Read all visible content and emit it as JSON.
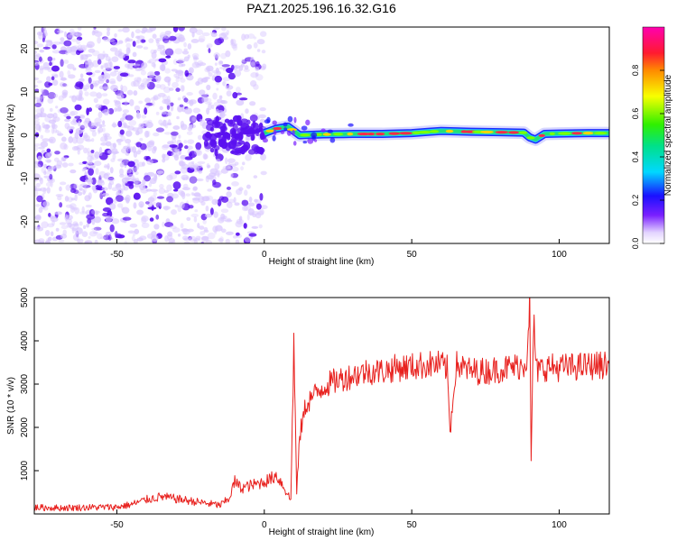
{
  "figure": {
    "title": "PAZ1.2025.196.16.32.G16"
  },
  "colors": {
    "snr_line": "#e8211e",
    "speckle_light": "#d8c6ff",
    "speckle_dark": "#5a10f0",
    "ridge_outer": "#1f2bff",
    "ridge_mid": "#22e07a",
    "ridge_core": "#ff2a4a"
  },
  "colorbar": {
    "label": "Normalized spectral amplitude",
    "ticks": [
      "0.0",
      "0.2",
      "0.4",
      "0.6",
      "0.8"
    ],
    "tick_values": [
      0.0,
      0.2,
      0.4,
      0.6,
      0.8
    ],
    "range": [
      0,
      1
    ],
    "colormap": "rainbow (white-violet → blue → cyan → green → yellow → red → magenta)"
  },
  "chart_data": [
    {
      "type": "heatmap",
      "xlabel": "Height of straight line (km)",
      "ylabel": "Frequency (Hz)",
      "xlim": [
        -78,
        117
      ],
      "ylim": [
        -25,
        25
      ],
      "x_ticks": [
        -50,
        0,
        50,
        100
      ],
      "x_tick_labels": [
        "-50",
        "0",
        "50",
        "100"
      ],
      "y_ticks": [
        -20,
        -10,
        0,
        10,
        20
      ],
      "y_tick_labels": [
        "-20",
        "-10",
        "0",
        "10",
        "20"
      ],
      "grid": false,
      "noise_region_x": [
        -78,
        0
      ],
      "signal_ridge": {
        "x": [
          0,
          4,
          8,
          12,
          20,
          30,
          40,
          50,
          56,
          60,
          70,
          80,
          88,
          90,
          92,
          95,
          100,
          110,
          117
        ],
        "frequency": [
          0.5,
          1.5,
          2,
          0,
          0.2,
          0.3,
          0.3,
          0.5,
          0.8,
          1.0,
          0.8,
          0.7,
          0.6,
          -0.5,
          -1.0,
          0.3,
          0.4,
          0.5,
          0.5
        ],
        "peak_amplitude": 0.9
      }
    },
    {
      "type": "line",
      "xlabel": "Height of straight line (km)",
      "ylabel": "SNR (10 * v/v)",
      "xlim": [
        -78,
        117
      ],
      "ylim": [
        0,
        5000
      ],
      "x_ticks": [
        -50,
        0,
        50,
        100
      ],
      "x_tick_labels": [
        "-50",
        "0",
        "50",
        "100"
      ],
      "y_ticks": [
        1000,
        2000,
        3000,
        4000,
        5000
      ],
      "y_tick_labels": [
        "1000",
        "2000",
        "3000",
        "4000",
        "5000"
      ],
      "grid": false,
      "series": [
        {
          "x": [
            -78,
            -70,
            -60,
            -50,
            -45,
            -40,
            -35,
            -30,
            -25,
            -20,
            -15,
            -12,
            -10,
            -8,
            -5,
            -2,
            0,
            2,
            4,
            6,
            8,
            9,
            10,
            11,
            12,
            14,
            16,
            18,
            20,
            25,
            30,
            35,
            40,
            45,
            50,
            55,
            60,
            62,
            63,
            65,
            70,
            75,
            80,
            85,
            88,
            89,
            90,
            90.5,
            91,
            91.5,
            92,
            94,
            96,
            100,
            105,
            110,
            117
          ],
          "y": [
            150,
            140,
            150,
            160,
            220,
            330,
            400,
            350,
            300,
            250,
            200,
            350,
            750,
            600,
            650,
            700,
            750,
            800,
            900,
            700,
            450,
            300,
            4000,
            500,
            1800,
            2500,
            2700,
            2800,
            2950,
            3100,
            3200,
            3300,
            3300,
            3380,
            3400,
            3450,
            3450,
            3350,
            1900,
            3450,
            3300,
            3300,
            3350,
            3400,
            3450,
            3600,
            5000,
            1100,
            3300,
            4750,
            3300,
            3350,
            3400,
            3380,
            3400,
            3420,
            3450
          ]
        }
      ]
    }
  ]
}
